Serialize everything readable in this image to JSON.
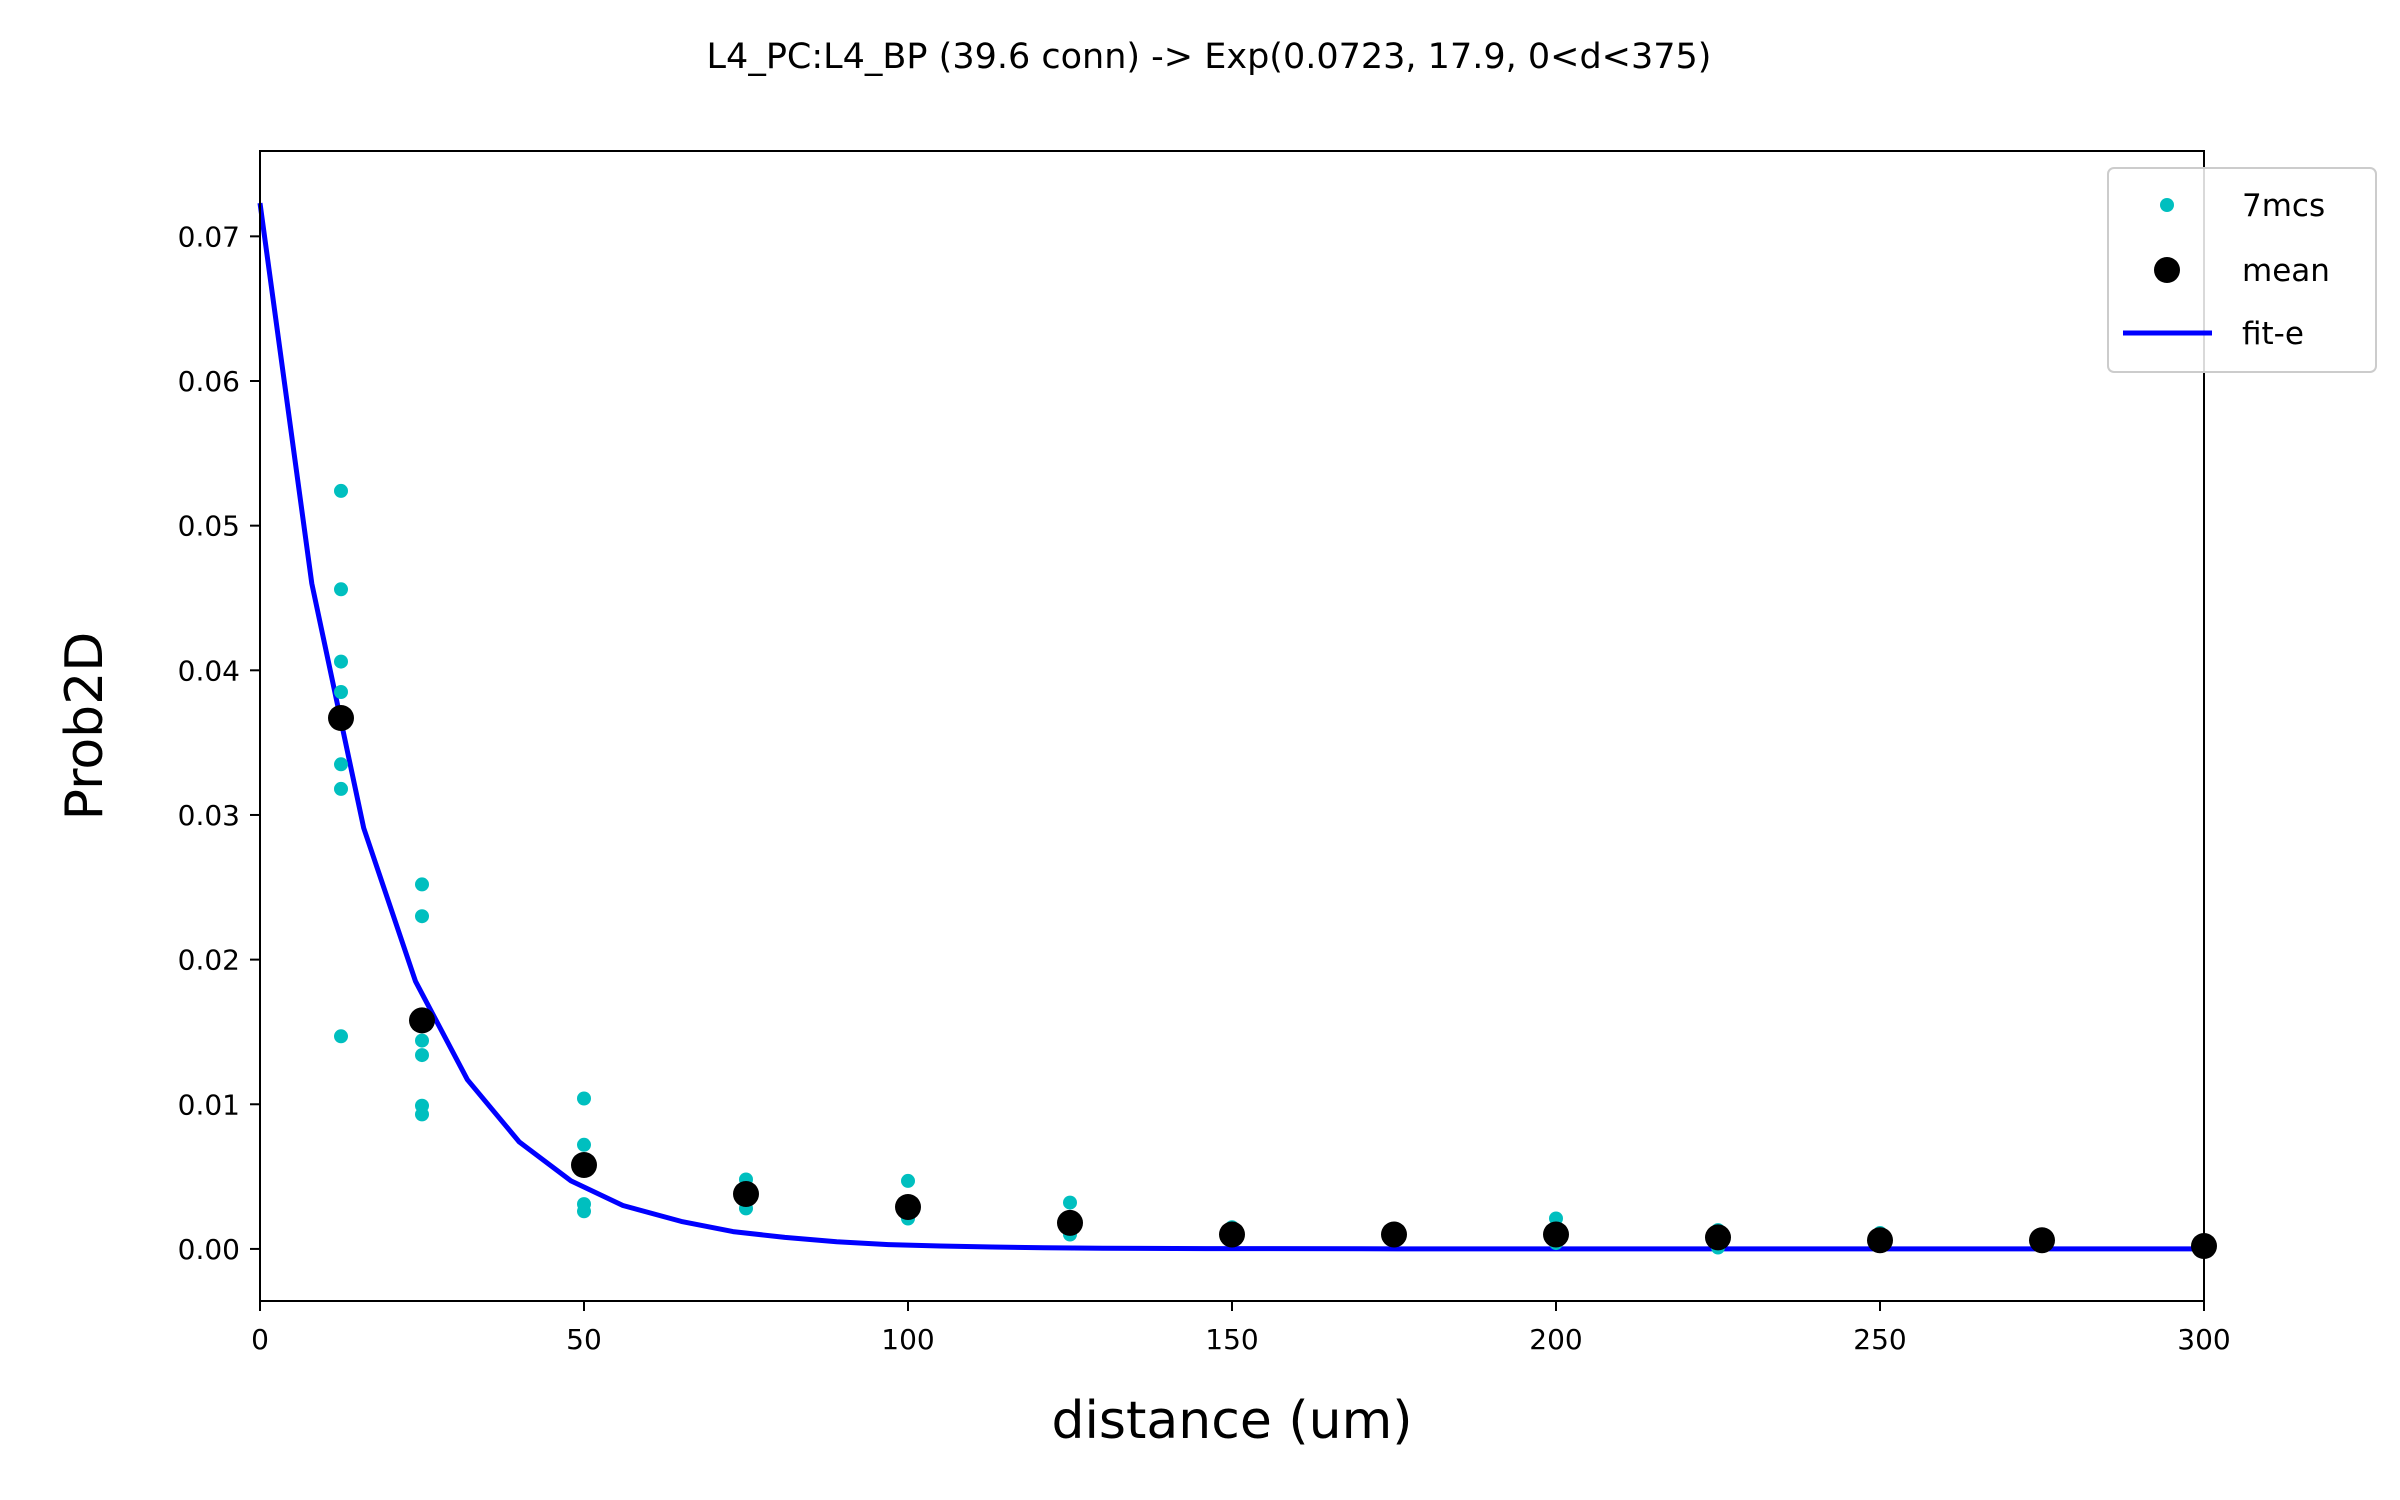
{
  "chart_data": {
    "type": "scatter",
    "title": "L4_PC:L4_BP (39.6 conn) -> Exp(0.0723, 17.9, 0<d<375)",
    "xlabel": "distance (um)",
    "ylabel": "Prob2D",
    "xlim": [
      0,
      300
    ],
    "ylim": [
      -0.0036,
      0.0759
    ],
    "xticks": [
      0,
      50,
      100,
      150,
      200,
      250,
      300
    ],
    "xtick_labels": [
      "0",
      "50",
      "100",
      "150",
      "200",
      "250",
      "300"
    ],
    "yticks": [
      0.0,
      0.01,
      0.02,
      0.03,
      0.04,
      0.05,
      0.06,
      0.07
    ],
    "ytick_labels": [
      "0.00",
      "0.01",
      "0.02",
      "0.03",
      "0.04",
      "0.05",
      "0.06",
      "0.07"
    ],
    "grid": false,
    "legend_position": "top-right",
    "legend": [
      "7mcs",
      "mean",
      "fit-e"
    ],
    "series": [
      {
        "name": "7mcs",
        "kind": "scatter",
        "color": "#00bfbf",
        "points": [
          [
            12.5,
            0.0524
          ],
          [
            12.5,
            0.0456
          ],
          [
            12.5,
            0.0406
          ],
          [
            12.5,
            0.0385
          ],
          [
            12.5,
            0.0335
          ],
          [
            12.5,
            0.0318
          ],
          [
            12.5,
            0.0147
          ],
          [
            25,
            0.0252
          ],
          [
            25,
            0.023
          ],
          [
            25,
            0.0144
          ],
          [
            25,
            0.0134
          ],
          [
            25,
            0.0099
          ],
          [
            25,
            0.0093
          ],
          [
            50,
            0.0104
          ],
          [
            50,
            0.0072
          ],
          [
            50,
            0.0058
          ],
          [
            50,
            0.0031
          ],
          [
            50,
            0.0026
          ],
          [
            75,
            0.0048
          ],
          [
            75,
            0.0037
          ],
          [
            75,
            0.0028
          ],
          [
            100,
            0.0047
          ],
          [
            100,
            0.003
          ],
          [
            100,
            0.0021
          ],
          [
            125,
            0.0032
          ],
          [
            125,
            0.0014
          ],
          [
            125,
            0.001
          ],
          [
            150,
            0.0015
          ],
          [
            150,
            0.0009
          ],
          [
            150,
            0.0006
          ],
          [
            175,
            0.0013
          ],
          [
            175,
            0.001
          ],
          [
            175,
            0.0007
          ],
          [
            200,
            0.0021
          ],
          [
            200,
            0.001
          ],
          [
            200,
            0.0004
          ],
          [
            225,
            0.0013
          ],
          [
            225,
            0.0008
          ],
          [
            225,
            0.0001
          ],
          [
            250,
            0.0011
          ],
          [
            250,
            0.0006
          ],
          [
            250,
            0.0003
          ],
          [
            275,
            0.0007
          ],
          [
            275,
            0.0004
          ],
          [
            300,
            0.0003
          ],
          [
            300,
            0.0001
          ]
        ]
      },
      {
        "name": "mean",
        "kind": "scatter",
        "color": "#000000",
        "points": [
          [
            12.5,
            0.0367
          ],
          [
            25,
            0.0158
          ],
          [
            50,
            0.0058
          ],
          [
            75,
            0.0038
          ],
          [
            100,
            0.0029
          ],
          [
            125,
            0.0018
          ],
          [
            150,
            0.001
          ],
          [
            175,
            0.001
          ],
          [
            200,
            0.001
          ],
          [
            225,
            0.0008
          ],
          [
            250,
            0.0006
          ],
          [
            275,
            0.0006
          ],
          [
            300,
            0.0002
          ]
        ]
      },
      {
        "name": "fit-e",
        "kind": "line",
        "color": "#0000ff",
        "points": [
          [
            0,
            0.0723
          ],
          [
            8,
            0.046
          ],
          [
            16,
            0.0291
          ],
          [
            24,
            0.0185
          ],
          [
            32,
            0.0117
          ],
          [
            40,
            0.0074
          ],
          [
            48,
            0.0047
          ],
          [
            56,
            0.003
          ],
          [
            65,
            0.0019
          ],
          [
            73,
            0.0012
          ],
          [
            81,
            0.0008
          ],
          [
            89,
            0.0005
          ],
          [
            97,
            0.0003
          ],
          [
            105,
            0.0002
          ],
          [
            113,
            0.00013
          ],
          [
            121,
            8e-05
          ],
          [
            130,
            5e-05
          ],
          [
            146,
            2e-05
          ],
          [
            170,
            1e-05
          ],
          [
            200,
            0.0
          ],
          [
            250,
            0.0
          ],
          [
            300,
            0.0
          ]
        ]
      }
    ]
  }
}
